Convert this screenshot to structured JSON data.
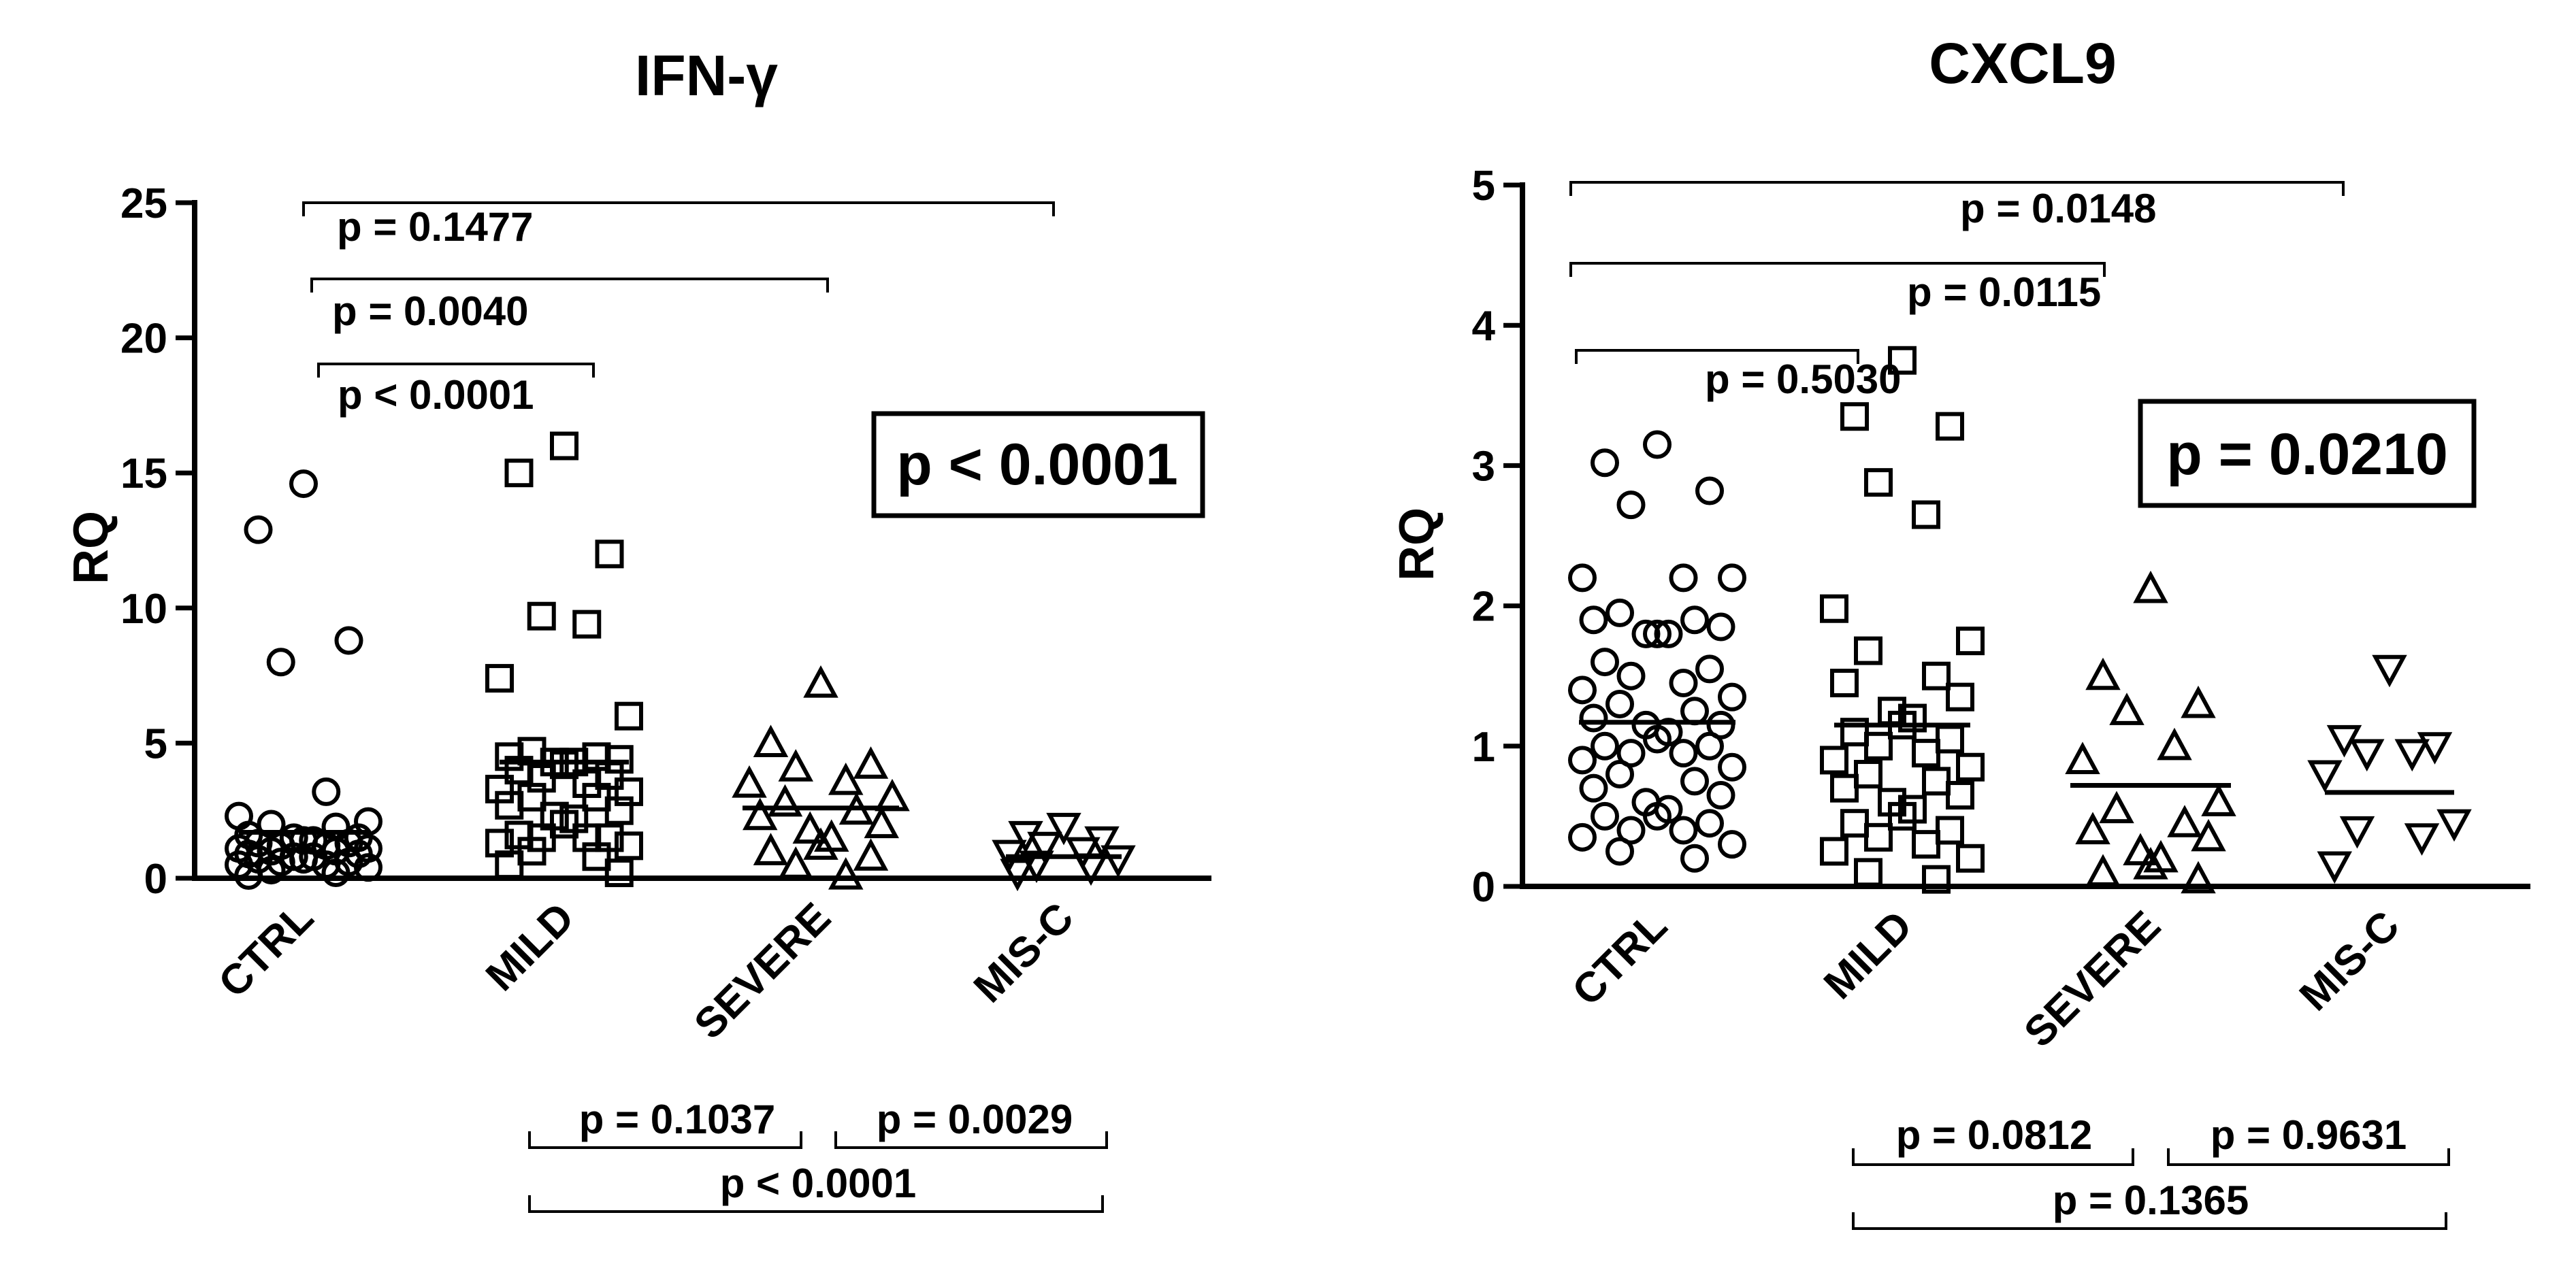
{
  "colors": {
    "ink": "#000000",
    "background": "#ffffff"
  },
  "chart_data": [
    {
      "type": "scatter",
      "title": "IFN-γ",
      "ylabel": "RQ",
      "ylim": [
        0,
        25
      ],
      "yticks": [
        "0",
        "5",
        "10",
        "15",
        "20",
        "25"
      ],
      "categories": [
        "CTRL",
        "MILD",
        "SEVERE",
        "MIS-C"
      ],
      "markers": [
        "circle",
        "square",
        "triangle-up",
        "triangle-down"
      ],
      "means": [
        1.7,
        4.3,
        2.6,
        0.8
      ],
      "overall_p": "p < 0.0001",
      "series": [
        {
          "values": [
            14.6,
            12.9,
            8.8,
            8.0,
            3.2,
            2.3,
            2.1,
            2.0,
            1.9,
            1.6,
            1.5,
            1.5,
            1.4,
            1.4,
            1.3,
            1.3,
            1.2,
            1.2,
            1.1,
            1.1,
            1.0,
            1.0,
            0.9,
            0.9,
            0.8,
            0.8,
            0.7,
            0.7,
            0.6,
            0.6,
            0.5,
            0.5,
            0.4,
            0.3,
            0.2,
            0.1
          ]
        },
        {
          "values": [
            16.0,
            15.0,
            12.0,
            9.7,
            9.4,
            7.4,
            6.0,
            4.7,
            4.5,
            4.5,
            4.4,
            4.3,
            4.3,
            4.2,
            4.0,
            3.8,
            3.7,
            3.5,
            3.3,
            3.2,
            3.0,
            3.0,
            2.7,
            2.5,
            2.3,
            2.2,
            2.0,
            1.6,
            1.5,
            1.5,
            1.5,
            1.3,
            1.2,
            1.0,
            0.8,
            0.5,
            0.2
          ]
        },
        {
          "values": [
            7.2,
            5.0,
            4.2,
            4.1,
            3.6,
            3.5,
            3.0,
            2.8,
            2.5,
            2.3,
            2.0,
            1.8,
            1.5,
            1.2,
            1.0,
            0.8,
            0.5,
            0.1
          ]
        },
        {
          "values": [
            1.9,
            1.6,
            1.4,
            1.2,
            1.0,
            0.9,
            0.7,
            0.5,
            0.4,
            0.2
          ]
        }
      ],
      "comparisons_top": [
        {
          "label": "p = 0.1477"
        },
        {
          "label": "p = 0.0040"
        },
        {
          "label": "p < 0.0001"
        }
      ],
      "comparisons_bottom": [
        {
          "label": "p = 0.1037"
        },
        {
          "label": "p = 0.0029"
        },
        {
          "label": "p < 0.0001"
        }
      ]
    },
    {
      "type": "scatter",
      "title": "CXCL9",
      "ylabel": "RQ",
      "ylim": [
        0,
        5
      ],
      "yticks": [
        "0",
        "1",
        "2",
        "3",
        "4",
        "5"
      ],
      "categories": [
        "CTRL",
        "MILD",
        "SEVERE",
        "MIS-C"
      ],
      "markers": [
        "circle",
        "square",
        "triangle-up",
        "triangle-down"
      ],
      "means": [
        1.17,
        1.15,
        0.72,
        0.67
      ],
      "overall_p": "p = 0.0210",
      "series": [
        {
          "values": [
            3.15,
            3.02,
            2.82,
            2.72,
            2.2,
            2.2,
            2.2,
            1.95,
            1.9,
            1.9,
            1.85,
            1.8,
            1.8,
            1.8,
            1.6,
            1.55,
            1.5,
            1.45,
            1.4,
            1.35,
            1.3,
            1.25,
            1.2,
            1.15,
            1.15,
            1.1,
            1.05,
            1.0,
            1.0,
            0.95,
            0.95,
            0.9,
            0.85,
            0.8,
            0.75,
            0.7,
            0.65,
            0.6,
            0.55,
            0.5,
            0.5,
            0.45,
            0.4,
            0.4,
            0.35,
            0.3,
            0.25,
            0.2
          ]
        },
        {
          "values": [
            3.75,
            3.35,
            3.28,
            2.88,
            2.65,
            1.98,
            1.75,
            1.68,
            1.5,
            1.45,
            1.35,
            1.25,
            1.2,
            1.15,
            1.1,
            1.05,
            1.0,
            0.95,
            0.9,
            0.85,
            0.8,
            0.75,
            0.7,
            0.65,
            0.6,
            0.55,
            0.5,
            0.45,
            0.4,
            0.35,
            0.3,
            0.25,
            0.2,
            0.1,
            0.05
          ]
        },
        {
          "values": [
            2.12,
            1.5,
            1.3,
            1.25,
            1.0,
            0.9,
            0.6,
            0.55,
            0.45,
            0.4,
            0.35,
            0.25,
            0.2,
            0.15,
            0.1,
            0.05
          ]
        },
        {
          "values": [
            1.55,
            1.05,
            1.0,
            0.95,
            0.95,
            0.8,
            0.45,
            0.4,
            0.35,
            0.15
          ]
        }
      ],
      "comparisons_top": [
        {
          "label": "p = 0.0148"
        },
        {
          "label": "p = 0.0115"
        },
        {
          "label": "p = 0.5030"
        }
      ],
      "comparisons_bottom": [
        {
          "label": "p = 0.0812"
        },
        {
          "label": "p = 0.9631"
        },
        {
          "label": "p = 0.1365"
        }
      ]
    }
  ]
}
